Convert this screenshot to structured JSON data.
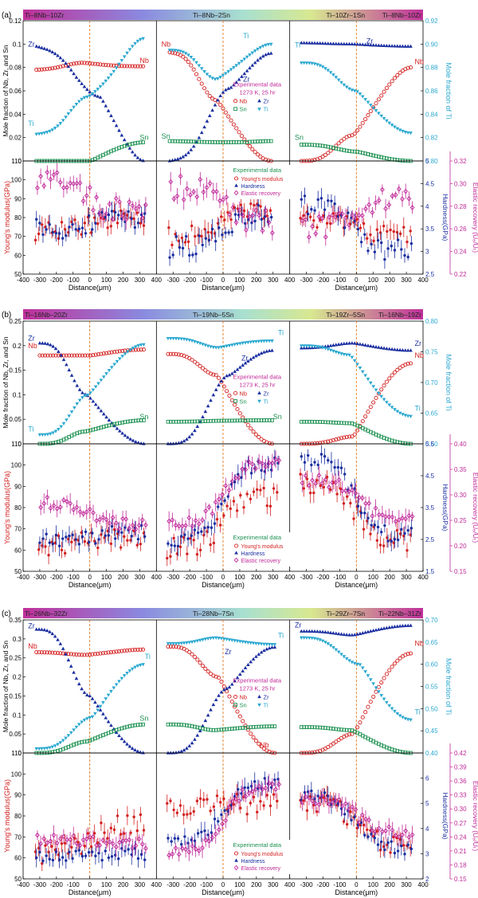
{
  "figure": {
    "y_left_top": "Mole fraction of Nb, Zr, and Sn",
    "y_right_top": "Mole fraction of Ti",
    "y_left_bottom": "Young's modulus(GPa)",
    "y_mid_bottom": "Hardness(GPa)",
    "y_right_bottom": "Elastic recovery (Uₑ/Uₜ)",
    "x_label": "Distance(μm)",
    "x_ticks": [
      -400,
      -300,
      -200,
      -100,
      0,
      100,
      200,
      300,
      400
    ]
  },
  "legend_text": {
    "exp_title": "Experimental data",
    "exp_cond": "1273 K, 25 hr",
    "nb": "Nb",
    "zr": "Zr",
    "sn": "Sn",
    "ti": "Ti",
    "ym": "Young's modulus",
    "hd": "Hardness",
    "er": "Elastic recovery"
  },
  "colors": {
    "nb": "#d42020",
    "zr": "#1a2ea0",
    "sn": "#1a9050",
    "ti": "#2aa8d0",
    "ym": "#d42020",
    "hd": "#1a2ea0",
    "er": "#c02898",
    "divider": "#e07820"
  },
  "chart_data": [
    {
      "panel": "(a)",
      "type": "scatter",
      "gradient_labels": [
        "Ti–8Nb–10Zr",
        "Ti–8Nb–2Sn",
        "Ti–10Zr–1Sn",
        "Ti–8Nb–10Zr"
      ],
      "top": {
        "ylim_left": [
          0,
          0.12
        ],
        "ylim_right": [
          0.8,
          0.92
        ],
        "yticks_left": [
          0,
          0.02,
          0.04,
          0.06,
          0.08,
          0.1,
          0.12
        ],
        "yticks_right": [
          0.8,
          0.82,
          0.84,
          0.86,
          0.88,
          0.9,
          0.92
        ],
        "legend_subpanel": 1,
        "subpanels": [
          {
            "labels": [
              {
                "t": "Zr",
                "x": -370,
                "y": 0.098
              },
              {
                "t": "Nb",
                "x": 300,
                "y": 0.084
              },
              {
                "t": "Ti",
                "x": -370,
                "y": 0.83
              },
              {
                "t": "Sn",
                "x": 300,
                "y": 0.018
              }
            ],
            "series": {
              "nb": [
                -320,
                0.078,
                0.081,
                -40,
                0.084,
                0.08,
                330,
                0.081
              ],
              "zr": [
                -320,
                0.098,
                0.08,
                60,
                0.055,
                0.006,
                330,
                0.0
              ],
              "ti": [
                -320,
                0.823,
                0.83,
                -10,
                0.855,
                0.885,
                330,
                0.905
              ],
              "sn": [
                -320,
                0.0,
                0.0,
                0,
                0.0,
                0.016,
                330,
                0.016
              ]
            }
          },
          {
            "labels": [
              {
                "t": "Nb",
                "x": -370,
                "y": 0.098
              },
              {
                "t": "Ti",
                "x": 120,
                "y": 0.905
              },
              {
                "t": "Zr",
                "x": 120,
                "y": 0.068
              },
              {
                "t": "Sn",
                "x": -370,
                "y": 0.019
              }
            ],
            "series": {
              "nb": [
                -320,
                0.093,
                0.085,
                -40,
                0.052,
                0.003,
                290,
                0.0
              ],
              "zr": [
                -320,
                0.0,
                0.012,
                40,
                0.062,
                0.088,
                290,
                0.092
              ],
              "ti": [
                -320,
                0.895,
                0.893,
                -40,
                0.87,
                0.893,
                290,
                0.9
              ],
              "sn": [
                -320,
                0.017,
                0.016,
                0,
                0.016,
                0.016,
                290,
                0.017
              ]
            }
          },
          {
            "labels": [
              {
                "t": "Zr",
                "x": 60,
                "y": 0.1005
              },
              {
                "t": "Nb",
                "x": 350,
                "y": 0.083
              },
              {
                "t": "Ti",
                "x": -370,
                "y": 0.897
              },
              {
                "t": "Sn",
                "x": -370,
                "y": 0.018
              }
            ],
            "series": {
              "nb": [
                -330,
                0.0,
                0.0,
                -20,
                0.022,
                0.072,
                330,
                0.08
              ],
              "zr": [
                -330,
                0.101,
                0.1,
                -30,
                0.1,
                0.098,
                330,
                0.098
              ],
              "ti": [
                -330,
                0.884,
                0.884,
                0,
                0.86,
                0.825,
                330,
                0.824
              ],
              "sn": [
                -330,
                0.014,
                0.013,
                0,
                0.008,
                0.0,
                330,
                0.0
              ]
            }
          }
        ]
      },
      "bottom": {
        "ylim_left": [
          50,
          110
        ],
        "ylim_mid": [
          2.5,
          5.0
        ],
        "ylim_right": [
          0.22,
          0.32
        ],
        "yticks_left": [
          50,
          60,
          70,
          80,
          90,
          100,
          110
        ],
        "yticks_mid": [
          2.5,
          3.0,
          3.5,
          4.0,
          4.5,
          5.0
        ],
        "yticks_right": [
          0.22,
          0.24,
          0.26,
          0.28,
          0.3,
          0.32
        ],
        "legend_subpanel": 1,
        "subpanels": [
          {
            "x": [
              -320,
              330
            ],
            "ym": [
              73,
              80
            ],
            "hd": [
              3.5,
              3.7
            ],
            "er": [
              0.301,
              0.274
            ]
          },
          {
            "x": [
              -320,
              290
            ],
            "ym": [
              70,
              84
            ],
            "hd": [
              3.1,
              3.9
            ],
            "er": [
              0.296,
              0.266
            ]
          },
          {
            "x": [
              -330,
              330
            ],
            "ym": [
              80,
              70
            ],
            "hd": [
              4.0,
              3.0
            ],
            "er": [
              0.262,
              0.288
            ]
          }
        ]
      }
    },
    {
      "panel": "(b)",
      "type": "scatter",
      "gradient_labels": [
        "Ti–16Nb–20Zr",
        "Ti–19Nb–5Sn",
        "Ti–19Zr–5Sn",
        "Ti–16Nb–19Zr"
      ],
      "top": {
        "ylim_left": [
          0,
          0.25
        ],
        "ylim_right": [
          0.6,
          0.8
        ],
        "yticks_left": [
          0,
          0.05,
          0.1,
          0.15,
          0.2,
          0.25
        ],
        "yticks_right": [
          0.6,
          0.65,
          0.7,
          0.75,
          0.8
        ],
        "legend_subpanel": 1,
        "subpanels": [
          {
            "labels": [
              {
                "t": "Zr",
                "x": -370,
                "y": 0.21
              },
              {
                "t": "Nb",
                "x": -370,
                "y": 0.195
              },
              {
                "t": "Ti",
                "x": -370,
                "y": 0.62
              },
              {
                "t": "Sn",
                "x": 300,
                "y": 0.05
              }
            ],
            "series": {
              "nb": [
                -300,
                0.18,
                0.18,
                0,
                0.18,
                0.192,
                330,
                0.192
              ],
              "zr": [
                -300,
                0.205,
                0.2,
                -20,
                0.1,
                0.0,
                330,
                0.0
              ],
              "ti": [
                -300,
                0.615,
                0.615,
                -10,
                0.68,
                0.76,
                330,
                0.762
              ],
              "sn": [
                -300,
                0.0,
                0.0,
                -30,
                0.025,
                0.048,
                330,
                0.048
              ]
            }
          },
          {
            "labels": [
              {
                "t": "Ti",
                "x": 330,
                "y": 0.777
              },
              {
                "t": "Zr",
                "x": 110,
                "y": 0.17
              },
              {
                "t": "Sn",
                "x": 300,
                "y": 0.05
              }
            ],
            "series": {
              "nb": [
                -330,
                0.183,
                0.183,
                -40,
                0.14,
                0.0,
                300,
                0.0
              ],
              "zr": [
                -330,
                0.0,
                0.0,
                40,
                0.14,
                0.19,
                300,
                0.19
              ],
              "ti": [
                -330,
                0.772,
                0.772,
                -30,
                0.757,
                0.77,
                300,
                0.768
              ],
              "sn": [
                -330,
                0.045,
                0.045,
                0,
                0.047,
                0.048,
                300,
                0.048
              ]
            }
          },
          {
            "labels": [
              {
                "t": "Zr",
                "x": 350,
                "y": 0.2
              },
              {
                "t": "Nb",
                "x": 350,
                "y": 0.175
              },
              {
                "t": "Ti",
                "x": 350,
                "y": 0.654
              }
            ],
            "series": {
              "nb": [
                -330,
                0.0,
                0.0,
                -20,
                0.015,
                0.164,
                330,
                0.164
              ],
              "zr": [
                -330,
                0.195,
                0.198,
                -20,
                0.205,
                0.19,
                330,
                0.19
              ],
              "ti": [
                -330,
                0.76,
                0.76,
                -40,
                0.745,
                0.645,
                330,
                0.645
              ],
              "sn": [
                -330,
                0.045,
                0.045,
                -30,
                0.042,
                0.0,
                330,
                0.0
              ]
            }
          }
        ]
      },
      "bottom": {
        "ylim_left": [
          50,
          110
        ],
        "ylim_mid": [
          1.5,
          5.5
        ],
        "ylim_right": [
          0.15,
          0.4
        ],
        "yticks_left": [
          50,
          60,
          70,
          80,
          90,
          100,
          110
        ],
        "yticks_mid": [
          1.5,
          2.5,
          3.5,
          4.5,
          5.5
        ],
        "yticks_right": [
          0.15,
          0.2,
          0.25,
          0.3,
          0.35,
          0.4
        ],
        "legend_subpanel": 1,
        "subpanels": [
          {
            "x": [
              -300,
              330
            ],
            "ym": [
              62,
              66
            ],
            "hd": [
              2.5,
              2.7
            ],
            "er": [
              0.285,
              0.242
            ]
          },
          {
            "x": [
              -330,
              330
            ],
            "ym": [
              61,
              85
            ],
            "hd": [
              2.5,
              4.9
            ],
            "er": [
              0.245,
              0.365
            ]
          },
          {
            "x": [
              -330,
              330
            ],
            "ym": [
              92,
              64
            ],
            "hd": [
              5.0,
              2.6
            ],
            "er": [
              0.33,
              0.255
            ]
          }
        ]
      }
    },
    {
      "panel": "(c)",
      "type": "scatter",
      "gradient_labels": [
        "Ti–26Nb–32Zr",
        "Ti–28Nb–7Sn",
        "Ti–29Zr–7Sn",
        "Ti–22Nb–31Zr"
      ],
      "top": {
        "ylim_left": [
          0,
          0.35
        ],
        "ylim_right": [
          0.4,
          0.7
        ],
        "yticks_left": [
          0,
          0.05,
          0.1,
          0.15,
          0.2,
          0.25,
          0.3,
          0.35
        ],
        "yticks_right": [
          0.4,
          0.45,
          0.5,
          0.55,
          0.6,
          0.65,
          0.7
        ],
        "legend_subpanel": 1,
        "subpanels": [
          {
            "labels": [
              {
                "t": "Zr",
                "x": -370,
                "y": 0.328
              },
              {
                "t": "Nb",
                "x": -370,
                "y": 0.275
              },
              {
                "t": "Ti",
                "x": 330,
                "y": 0.612
              },
              {
                "t": "Sn",
                "x": 300,
                "y": 0.085
              }
            ],
            "series": {
              "nb": [
                -320,
                0.265,
                0.262,
                -20,
                0.258,
                0.27,
                330,
                0.272
              ],
              "zr": [
                -320,
                0.325,
                0.322,
                0,
                0.15,
                0.0,
                330,
                0.0
              ],
              "ti": [
                -320,
                0.41,
                0.41,
                10,
                0.48,
                0.6,
                330,
                0.6
              ],
              "sn": [
                -320,
                0.0,
                0.0,
                -20,
                0.03,
                0.075,
                330,
                0.075
              ]
            }
          },
          {
            "labels": [
              {
                "t": "Ti",
                "x": 330,
                "y": 0.66
              },
              {
                "t": "Zr",
                "x": 10,
                "y": 0.26
              },
              {
                "t": "Nb",
                "x": 220,
                "y": 0.015
              }
            ],
            "series": {
              "nb": [
                -330,
                0.28,
                0.28,
                -30,
                0.2,
                0.0,
                310,
                0.0
              ],
              "zr": [
                -330,
                0.0,
                0.0,
                30,
                0.17,
                0.278,
                310,
                0.278
              ],
              "ti": [
                -330,
                0.647,
                0.647,
                -40,
                0.66,
                0.645,
                310,
                0.645
              ],
              "sn": [
                -330,
                0.075,
                0.075,
                -50,
                0.06,
                0.07,
                310,
                0.07
              ]
            }
          },
          {
            "labels": [
              {
                "t": "Zr",
                "x": -370,
                "y": 0.33
              },
              {
                "t": "Nb",
                "x": 350,
                "y": 0.282
              },
              {
                "t": "Ti",
                "x": 350,
                "y": 0.487
              }
            ],
            "series": {
              "nb": [
                -330,
                0.0,
                0.0,
                -20,
                0.05,
                0.26,
                330,
                0.262
              ],
              "zr": [
                -330,
                0.32,
                0.32,
                -20,
                0.31,
                0.335,
                330,
                0.335
              ],
              "ti": [
                -330,
                0.66,
                0.66,
                20,
                0.6,
                0.475,
                330,
                0.475
              ],
              "sn": [
                -330,
                0.068,
                0.068,
                -30,
                0.06,
                0.0,
                330,
                0.0
              ]
            }
          }
        ]
      },
      "bottom": {
        "ylim_left": [
          50,
          110
        ],
        "ylim_mid": [
          2,
          7
        ],
        "ylim_right": [
          0.15,
          0.42
        ],
        "yticks_left": [
          50,
          60,
          70,
          80,
          90,
          100,
          110
        ],
        "yticks_mid": [
          2,
          3,
          4,
          5,
          6
        ],
        "yticks_right": [
          0.15,
          0.18,
          0.21,
          0.24,
          0.27,
          0.3,
          0.33,
          0.36,
          0.39,
          0.42
        ],
        "legend_subpanel": 1,
        "subpanels": [
          {
            "x": [
              -320,
              330
            ],
            "ym": [
              62,
              76
            ],
            "hd": [
              2.9,
              3.0
            ],
            "er": [
              0.235,
              0.225
            ]
          },
          {
            "x": [
              -330,
              330
            ],
            "ym": [
              84,
              86
            ],
            "hd": [
              3.5,
              5.8
            ],
            "er": [
              0.21,
              0.35
            ]
          },
          {
            "x": [
              -330,
              330
            ],
            "ym": [
              86,
              66
            ],
            "hd": [
              5.3,
              3.2
            ],
            "er": [
              0.32,
              0.25
            ]
          }
        ]
      }
    }
  ]
}
